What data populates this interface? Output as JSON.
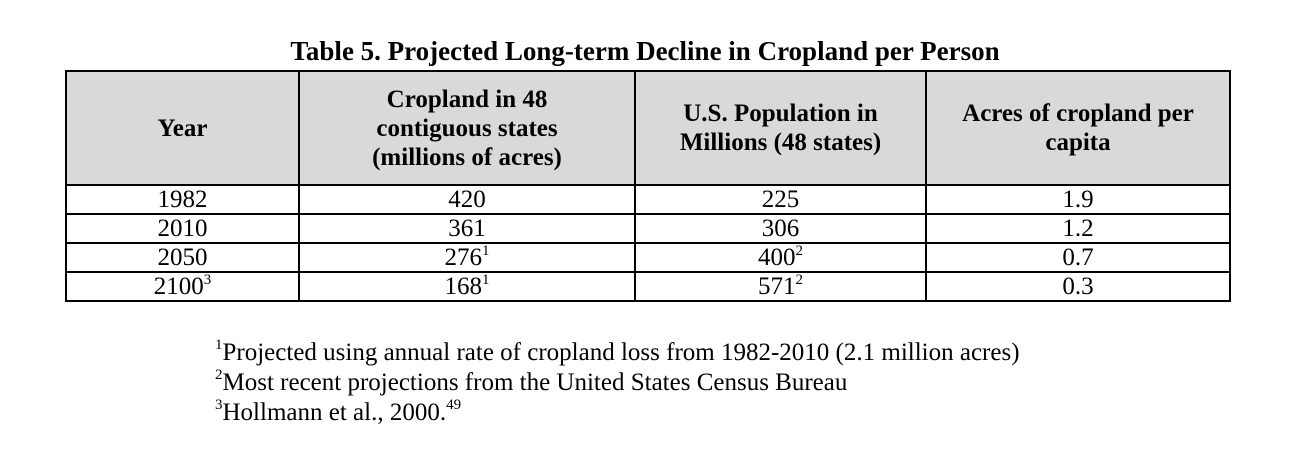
{
  "title": "Table 5. Projected Long-term Decline in Cropland per Person",
  "headers": [
    "Year",
    "Cropland in 48 contiguous states (millions of acres)",
    "U.S. Population in Millions (48 states)",
    "Acres of cropland per capita"
  ],
  "rows": [
    {
      "year": "1982",
      "year_sup": "",
      "cropland": "420",
      "cropland_sup": "",
      "population": "225",
      "population_sup": "",
      "per_capita": "1.9"
    },
    {
      "year": "2010",
      "year_sup": "",
      "cropland": "361",
      "cropland_sup": "",
      "population": "306",
      "population_sup": "",
      "per_capita": "1.2"
    },
    {
      "year": "2050",
      "year_sup": "",
      "cropland": "276",
      "cropland_sup": "1",
      "population": "400",
      "population_sup": "2",
      "per_capita": "0.7"
    },
    {
      "year": "2100",
      "year_sup": "3",
      "cropland": "168",
      "cropland_sup": "1",
      "population": "571",
      "population_sup": "2",
      "per_capita": "0.3"
    }
  ],
  "footnotes": [
    {
      "mark": "1",
      "text": "Projected using annual rate of cropland loss from 1982-2010 (2.1 million acres)",
      "ref": ""
    },
    {
      "mark": "2",
      "text": "Most recent projections from the United States Census Bureau",
      "ref": ""
    },
    {
      "mark": "3",
      "text": "Hollmann et al., 2000.",
      "ref": "49"
    }
  ]
}
